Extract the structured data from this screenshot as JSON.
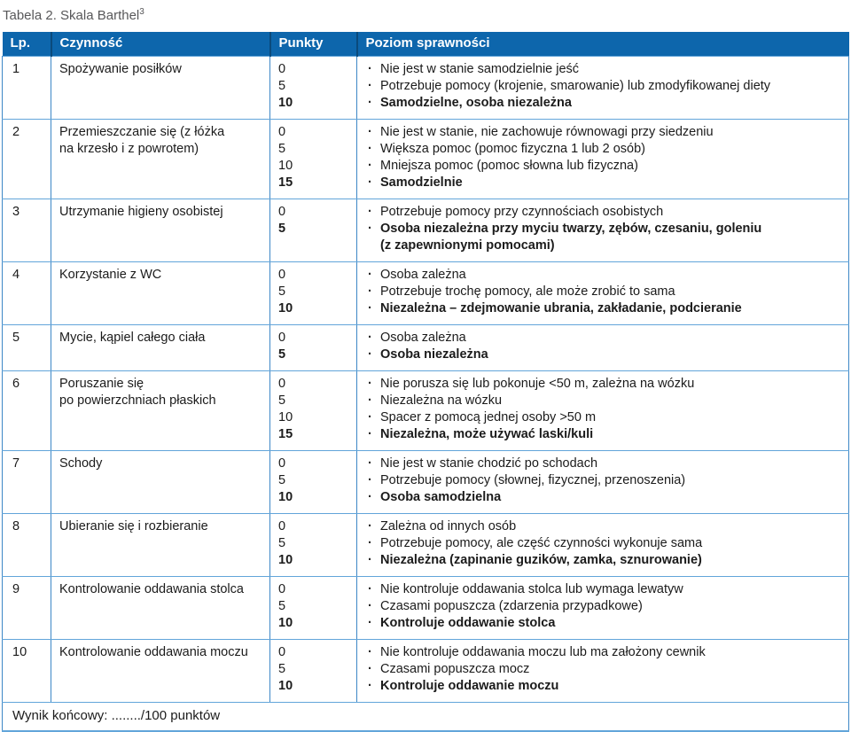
{
  "page": {
    "title": "Tabela 2. Skala Barthel",
    "title_footnote": "3"
  },
  "bullet_glyph": "·",
  "colors": {
    "header_bg": "#0d66ac",
    "header_text": "#ffffff",
    "header_divider": "#0a4a7c",
    "row_border_horizontal": "#62a5da",
    "column_divider": "#3d87c6",
    "caption_text": "#58585a",
    "body_text": "#1b1b1b"
  },
  "table": {
    "columns": [
      "Lp.",
      "Czynność",
      "Punkty",
      "Poziom sprawności"
    ],
    "rows": [
      {
        "lp": "1",
        "activity": "Spożywanie posiłków",
        "points": [
          {
            "value": "0",
            "bold": false
          },
          {
            "value": "5",
            "bold": false
          },
          {
            "value": "10",
            "bold": true
          }
        ],
        "levels": [
          {
            "text": "Nie jest w stanie samodzielnie jeść",
            "bold": false
          },
          {
            "text": "Potrzebuje pomocy (krojenie, smarowanie) lub zmodyfikowanej diety",
            "bold": false
          },
          {
            "text": "Samodzielne, osoba niezależna",
            "bold": true
          }
        ]
      },
      {
        "lp": "2",
        "activity": "Przemieszczanie się (z łóżka\nna krzesło i z powrotem)",
        "points": [
          {
            "value": "0",
            "bold": false
          },
          {
            "value": "5",
            "bold": false
          },
          {
            "value": "10",
            "bold": false
          },
          {
            "value": "15",
            "bold": true
          }
        ],
        "levels": [
          {
            "text": "Nie jest w stanie, nie zachowuje równowagi przy siedzeniu",
            "bold": false
          },
          {
            "text": "Większa pomoc (pomoc fizyczna 1 lub 2 osób)",
            "bold": false
          },
          {
            "text": "Mniejsza pomoc (pomoc słowna lub fizyczna)",
            "bold": false
          },
          {
            "text": "Samodzielnie",
            "bold": true
          }
        ]
      },
      {
        "lp": "3",
        "activity": "Utrzymanie higieny osobistej",
        "points": [
          {
            "value": "0",
            "bold": false
          },
          {
            "value": "5",
            "bold": true
          }
        ],
        "levels": [
          {
            "text": "Potrzebuje pomocy przy czynnościach osobistych",
            "bold": false
          },
          {
            "text": "Osoba niezależna przy myciu twarzy, zębów, czesaniu, goleniu\n(z zapewnionymi pomocami)",
            "bold": true
          }
        ]
      },
      {
        "lp": "4",
        "activity": "Korzystanie z WC",
        "points": [
          {
            "value": "0",
            "bold": false
          },
          {
            "value": "5",
            "bold": false
          },
          {
            "value": "10",
            "bold": true
          }
        ],
        "levels": [
          {
            "text": "Osoba zależna",
            "bold": false
          },
          {
            "text": "Potrzebuje trochę pomocy, ale może zrobić to sama",
            "bold": false
          },
          {
            "text": "Niezależna – zdejmowanie ubrania, zakładanie, podcieranie",
            "bold": true
          }
        ]
      },
      {
        "lp": "5",
        "activity": "Mycie, kąpiel całego ciała",
        "points": [
          {
            "value": "0",
            "bold": false
          },
          {
            "value": "5",
            "bold": true
          }
        ],
        "levels": [
          {
            "text": "Osoba zależna",
            "bold": false
          },
          {
            "text": "Osoba niezależna",
            "bold": true
          }
        ]
      },
      {
        "lp": "6",
        "activity": "Poruszanie się\npo powierzchniach płaskich",
        "points": [
          {
            "value": "0",
            "bold": false
          },
          {
            "value": "5",
            "bold": false
          },
          {
            "value": "10",
            "bold": false
          },
          {
            "value": "15",
            "bold": true
          }
        ],
        "levels": [
          {
            "text": "Nie porusza się lub pokonuje <50 m, zależna na wózku",
            "bold": false
          },
          {
            "text": "Niezależna na wózku",
            "bold": false
          },
          {
            "text": "Spacer z pomocą jednej osoby >50 m",
            "bold": false
          },
          {
            "text": "Niezależna, może używać laski/kuli",
            "bold": true
          }
        ]
      },
      {
        "lp": "7",
        "activity": "Schody",
        "points": [
          {
            "value": "0",
            "bold": false
          },
          {
            "value": "5",
            "bold": false
          },
          {
            "value": "10",
            "bold": true
          }
        ],
        "levels": [
          {
            "text": "Nie jest w stanie chodzić po schodach",
            "bold": false
          },
          {
            "text": "Potrzebuje pomocy (słownej, fizycznej, przenoszenia)",
            "bold": false
          },
          {
            "text": "Osoba samodzielna",
            "bold": true
          }
        ]
      },
      {
        "lp": "8",
        "activity": "Ubieranie się i rozbieranie",
        "points": [
          {
            "value": "0",
            "bold": false
          },
          {
            "value": "5",
            "bold": false
          },
          {
            "value": "10",
            "bold": true
          }
        ],
        "levels": [
          {
            "text": "Zależna od innych osób",
            "bold": false
          },
          {
            "text": "Potrzebuje pomocy, ale część czynności wykonuje sama",
            "bold": false
          },
          {
            "text": "Niezależna (zapinanie guzików, zamka, sznurowanie)",
            "bold": true
          }
        ]
      },
      {
        "lp": "9",
        "activity": "Kontrolowanie oddawania stolca",
        "points": [
          {
            "value": "0",
            "bold": false
          },
          {
            "value": "5",
            "bold": false
          },
          {
            "value": "10",
            "bold": true
          }
        ],
        "levels": [
          {
            "text": "Nie kontroluje oddawania stolca lub wymaga lewatyw",
            "bold": false
          },
          {
            "text": "Czasami popuszcza (zdarzenia przypadkowe)",
            "bold": false
          },
          {
            "text": "Kontroluje oddawanie stolca",
            "bold": true
          }
        ]
      },
      {
        "lp": "10",
        "activity": "Kontrolowanie oddawania moczu",
        "points": [
          {
            "value": "0",
            "bold": false
          },
          {
            "value": "5",
            "bold": false
          },
          {
            "value": "10",
            "bold": true
          }
        ],
        "levels": [
          {
            "text": "Nie kontroluje oddawania moczu lub ma założony cewnik",
            "bold": false
          },
          {
            "text": "Czasami popuszcza mocz",
            "bold": false
          },
          {
            "text": "Kontroluje oddawanie moczu",
            "bold": true
          }
        ]
      }
    ],
    "footer": "Wynik końcowy: ......../100 punktów"
  }
}
